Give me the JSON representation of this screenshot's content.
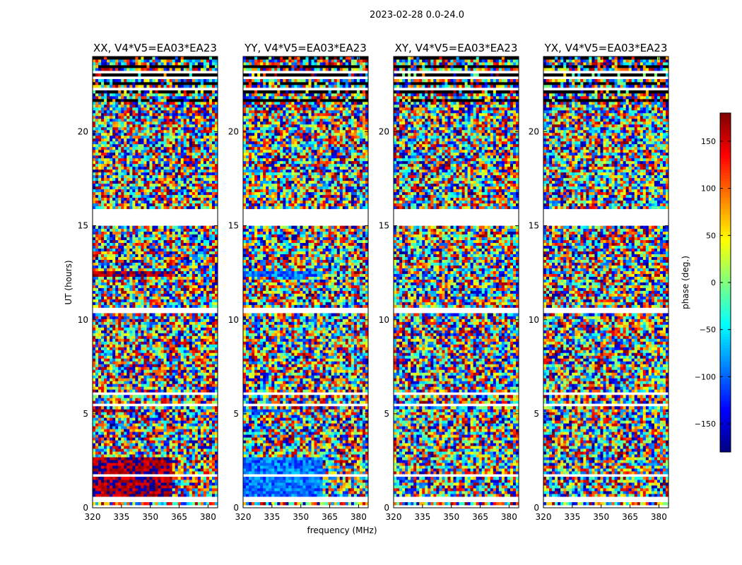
{
  "suptitle": "2023-02-28 0.0-24.0",
  "chart_data": {
    "type": "heatmap",
    "title": "2023-02-28 0.0-24.0",
    "xlabel": "frequency (MHz)",
    "ylabel": "UT (hours)",
    "xlim": [
      320,
      385
    ],
    "ylim": [
      0,
      24
    ],
    "xticks": [
      320,
      335,
      350,
      365,
      380
    ],
    "yticks": [
      0,
      5,
      10,
      15,
      20
    ],
    "panels": [
      {
        "title": "XX, V4*V5=EA03*EA23",
        "pol": "XX",
        "coherent_phase_deg": 170,
        "coherent_regions": [
          {
            "t_range": [
              0.3,
              2.7
            ],
            "f_range": [
              320,
              361
            ]
          },
          {
            "t_range": [
              12.3,
              12.6
            ],
            "f_range": [
              320,
              361
            ]
          },
          {
            "t_range": [
              17.8,
              18.0
            ],
            "f_range": [
              320,
              330
            ]
          },
          {
            "t_range": [
              5.1,
              5.3
            ],
            "f_range": [
              320,
              345
            ]
          }
        ]
      },
      {
        "title": "YY, V4*V5=EA03*EA23",
        "pol": "YY",
        "coherent_phase_deg": -95,
        "coherent_regions": [
          {
            "t_range": [
              0.3,
              2.7
            ],
            "f_range": [
              320,
              361
            ]
          },
          {
            "t_range": [
              12.3,
              12.6
            ],
            "f_range": [
              320,
              361
            ]
          },
          {
            "t_range": [
              17.8,
              18.0
            ],
            "f_range": [
              320,
              330
            ]
          },
          {
            "t_range": [
              5.1,
              5.3
            ],
            "f_range": [
              320,
              345
            ]
          }
        ]
      },
      {
        "title": "XY, V4*V5=EA03*EA23",
        "pol": "XY",
        "coherent_phase_deg": null,
        "coherent_regions": []
      },
      {
        "title": "YX, V4*V5=EA03*EA23",
        "pol": "YX",
        "coherent_phase_deg": null,
        "coherent_regions": []
      }
    ],
    "flagged_time_ranges_hours": [
      [
        0.0,
        0.1
      ],
      [
        0.35,
        0.55
      ],
      [
        1.45,
        1.5
      ],
      [
        1.7,
        1.75
      ],
      [
        2.65,
        2.7
      ],
      [
        3.55,
        3.6
      ],
      [
        5.45,
        5.5
      ],
      [
        6.05,
        6.2
      ],
      [
        6.4,
        6.45
      ],
      [
        10.4,
        10.6
      ],
      [
        15.05,
        15.85
      ],
      [
        16.45,
        16.5
      ],
      [
        18.7,
        18.75
      ],
      [
        19.75,
        19.8
      ],
      [
        21.75,
        21.8
      ],
      [
        22.2,
        22.3
      ],
      [
        22.8,
        22.9
      ],
      [
        23.1,
        23.2
      ]
    ],
    "colorbar": {
      "label": "phase (deg.)",
      "range": [
        -180,
        180
      ],
      "ticks": [
        -150,
        -100,
        -50,
        0,
        50,
        100,
        150
      ],
      "tick_labels": [
        "−150",
        "−100",
        "−50",
        "0",
        "50",
        "100",
        "150"
      ],
      "colormap": "jet"
    }
  }
}
